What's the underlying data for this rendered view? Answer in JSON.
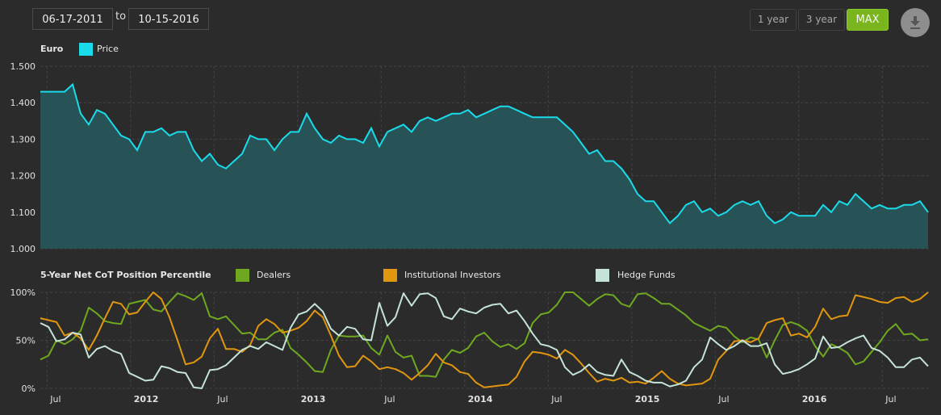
{
  "date_range": {
    "from": "06-17-2011",
    "to_label": "to",
    "to": "10-15-2016"
  },
  "range_buttons": [
    {
      "label": "1 year",
      "active": false
    },
    {
      "label": "3 year",
      "active": false
    },
    {
      "label": "MAX",
      "active": true
    }
  ],
  "download_icon": "download-icon",
  "colors": {
    "background": "#2b2b2b",
    "price": "#19dbe9",
    "price_fill": "#275357",
    "dealers": "#6fa820",
    "institutional": "#e0960f",
    "hedge_funds": "#c5e3d8",
    "max_button": "#7ab51d"
  },
  "chart_data": [
    {
      "type": "area",
      "title": "Euro",
      "legend": [
        {
          "name": "Price"
        }
      ],
      "legend_placement": "top-left",
      "x_range": [
        "2011-06-17",
        "2016-10-15"
      ],
      "ylim": [
        1.0,
        1.5
      ],
      "yticks": [
        "1.000",
        "1.100",
        "1.200",
        "1.300",
        "1.400",
        "1.500"
      ],
      "grid": true,
      "series": [
        {
          "name": "Price",
          "values": [
            1.43,
            1.43,
            1.43,
            1.43,
            1.45,
            1.37,
            1.34,
            1.38,
            1.37,
            1.34,
            1.31,
            1.3,
            1.27,
            1.32,
            1.32,
            1.33,
            1.31,
            1.32,
            1.32,
            1.27,
            1.24,
            1.26,
            1.23,
            1.22,
            1.24,
            1.26,
            1.31,
            1.3,
            1.3,
            1.27,
            1.3,
            1.32,
            1.32,
            1.37,
            1.33,
            1.3,
            1.29,
            1.31,
            1.3,
            1.3,
            1.29,
            1.33,
            1.28,
            1.32,
            1.33,
            1.34,
            1.32,
            1.35,
            1.36,
            1.35,
            1.36,
            1.37,
            1.37,
            1.38,
            1.36,
            1.37,
            1.38,
            1.39,
            1.39,
            1.38,
            1.37,
            1.36,
            1.36,
            1.36,
            1.36,
            1.34,
            1.32,
            1.29,
            1.26,
            1.27,
            1.24,
            1.24,
            1.22,
            1.19,
            1.15,
            1.13,
            1.13,
            1.1,
            1.07,
            1.09,
            1.12,
            1.13,
            1.1,
            1.11,
            1.09,
            1.1,
            1.12,
            1.13,
            1.12,
            1.13,
            1.09,
            1.07,
            1.08,
            1.1,
            1.09,
            1.09,
            1.09,
            1.12,
            1.1,
            1.13,
            1.12,
            1.15,
            1.13,
            1.11,
            1.12,
            1.11,
            1.11,
            1.12,
            1.12,
            1.13,
            1.1
          ]
        }
      ]
    },
    {
      "type": "line",
      "title": "5-Year Net CoT Position Percentile",
      "legend_placement": "top",
      "x_range": [
        "2011-06-17",
        "2016-10-15"
      ],
      "ylim": [
        0,
        100
      ],
      "yticks": [
        "0%",
        "50%",
        "100%"
      ],
      "xticks": [
        {
          "label": "Jul",
          "date": 2011.5,
          "year": false
        },
        {
          "label": "2012",
          "date": 2012.0,
          "year": true
        },
        {
          "label": "Jul",
          "date": 2012.5,
          "year": false
        },
        {
          "label": "2013",
          "date": 2013.0,
          "year": true
        },
        {
          "label": "Jul",
          "date": 2013.5,
          "year": false
        },
        {
          "label": "2014",
          "date": 2014.0,
          "year": true
        },
        {
          "label": "Jul",
          "date": 2014.5,
          "year": false
        },
        {
          "label": "2015",
          "date": 2015.0,
          "year": true
        },
        {
          "label": "Jul",
          "date": 2015.5,
          "year": false
        },
        {
          "label": "2016",
          "date": 2016.0,
          "year": true
        },
        {
          "label": "Jul",
          "date": 2016.5,
          "year": false
        }
      ],
      "grid": true,
      "series": [
        {
          "name": "Dealers",
          "values": [
            30,
            34,
            50,
            46,
            51,
            60,
            84,
            78,
            70,
            68,
            67,
            88,
            90,
            92,
            82,
            80,
            90,
            99,
            96,
            92,
            99,
            75,
            72,
            75,
            66,
            57,
            58,
            51,
            51,
            58,
            61,
            42,
            35,
            27,
            18,
            17,
            40,
            55,
            54,
            54,
            55,
            42,
            35,
            55,
            38,
            32,
            34,
            13,
            13,
            12,
            30,
            40,
            37,
            42,
            54,
            58,
            49,
            43,
            46,
            41,
            47,
            68,
            77,
            79,
            87,
            100,
            100,
            93,
            86,
            93,
            98,
            97,
            88,
            85,
            98,
            99,
            94,
            88,
            88,
            82,
            76,
            68,
            64,
            60,
            65,
            63,
            54,
            48,
            53,
            51,
            32,
            50,
            66,
            69,
            66,
            60,
            44,
            33,
            46,
            42,
            37,
            25,
            28,
            38,
            48,
            60,
            67,
            56,
            57,
            50,
            51
          ]
        },
        {
          "name": "Institutional Investors",
          "values": [
            73,
            71,
            69,
            55,
            58,
            52,
            40,
            55,
            73,
            90,
            88,
            77,
            79,
            90,
            100,
            93,
            74,
            50,
            25,
            27,
            33,
            52,
            62,
            41,
            41,
            38,
            45,
            65,
            72,
            67,
            58,
            60,
            63,
            70,
            81,
            74,
            55,
            34,
            22,
            23,
            34,
            28,
            20,
            22,
            20,
            16,
            9,
            16,
            24,
            36,
            27,
            24,
            17,
            15,
            6,
            1,
            2,
            3,
            4,
            12,
            28,
            38,
            37,
            35,
            31,
            40,
            35,
            26,
            16,
            7,
            10,
            8,
            11,
            6,
            7,
            5,
            11,
            18,
            10,
            5,
            3,
            4,
            5,
            10,
            30,
            39,
            49,
            50,
            48,
            52,
            68,
            71,
            73,
            55,
            57,
            53,
            64,
            83,
            72,
            75,
            76,
            97,
            95,
            93,
            90,
            89,
            94,
            95,
            90,
            93,
            100
          ]
        },
        {
          "name": "Hedge Funds",
          "values": [
            68,
            64,
            49,
            51,
            58,
            56,
            32,
            41,
            44,
            39,
            36,
            16,
            12,
            8,
            9,
            23,
            21,
            17,
            16,
            1,
            0,
            19,
            20,
            24,
            32,
            40,
            44,
            41,
            48,
            44,
            40,
            63,
            77,
            80,
            88,
            80,
            62,
            55,
            64,
            62,
            51,
            50,
            89,
            65,
            74,
            99,
            86,
            98,
            99,
            94,
            75,
            72,
            83,
            80,
            78,
            84,
            87,
            88,
            78,
            81,
            70,
            57,
            46,
            44,
            40,
            22,
            14,
            18,
            25,
            17,
            14,
            13,
            30,
            17,
            13,
            8,
            6,
            6,
            2,
            4,
            8,
            22,
            30,
            53,
            46,
            40,
            44,
            50,
            44,
            44,
            47,
            25,
            15,
            17,
            20,
            25,
            31,
            54,
            42,
            43,
            48,
            52,
            55,
            42,
            39,
            32,
            22,
            22,
            30,
            32,
            23
          ]
        }
      ]
    }
  ]
}
